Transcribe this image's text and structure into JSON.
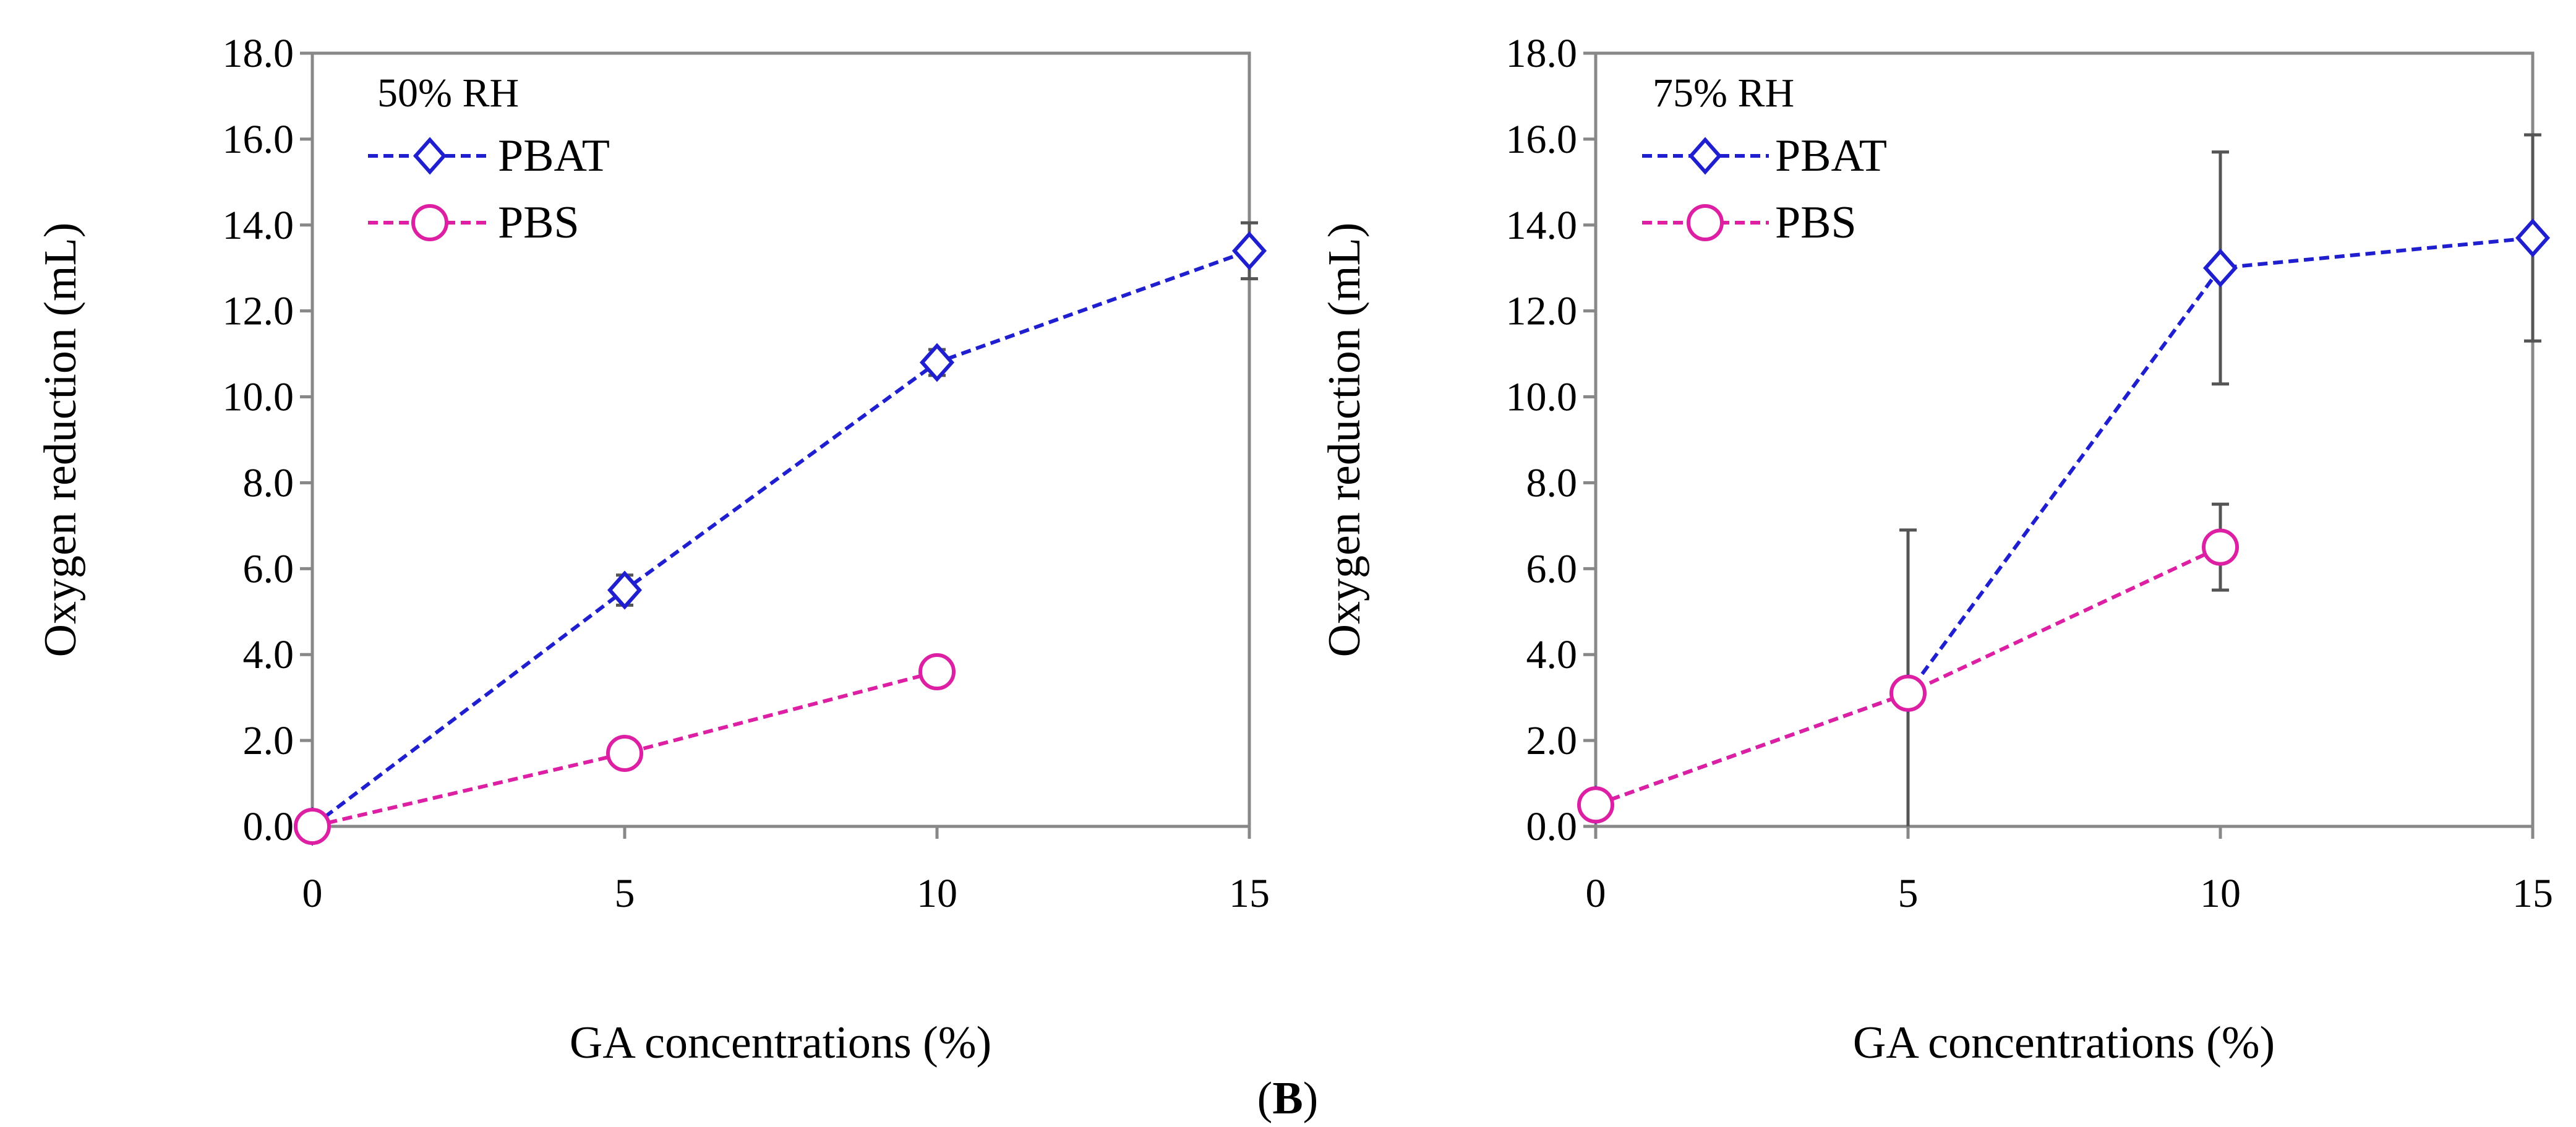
{
  "caption": {
    "open": "(",
    "letter": "B",
    "close": ")"
  },
  "chart_data": [
    {
      "type": "line",
      "panel_label": "50% RH",
      "xlabel": "GA concentrations (%)",
      "ylabel": "Oxygen reduction (mL)",
      "xlim": [
        0,
        15
      ],
      "ylim": [
        0,
        18
      ],
      "x_ticks": [
        "0",
        "5",
        "10",
        "15"
      ],
      "y_ticks": [
        "0.0",
        "2.0",
        "4.0",
        "6.0",
        "8.0",
        "10.0",
        "12.0",
        "14.0",
        "16.0",
        "18.0"
      ],
      "grid": false,
      "legend_position": "top-left",
      "series": [
        {
          "name": "PBAT",
          "color": "#1F1FD0",
          "marker": "diamond",
          "x": [
            0,
            5,
            10,
            15
          ],
          "y": [
            0.0,
            5.5,
            10.8,
            13.4
          ],
          "err": [
            0.0,
            0.35,
            0.3,
            0.65
          ]
        },
        {
          "name": "PBS",
          "color": "#DD1FA3",
          "marker": "circle",
          "x": [
            0,
            5,
            10
          ],
          "y": [
            0.0,
            1.7,
            3.6
          ],
          "err": [
            0.0,
            0.1,
            0.1
          ]
        }
      ]
    },
    {
      "type": "line",
      "panel_label": "75% RH",
      "xlabel": "GA concentrations (%)",
      "ylabel": "Oxygen reduction (mL)",
      "xlim": [
        0,
        15
      ],
      "ylim": [
        0,
        18
      ],
      "x_ticks": [
        "0",
        "5",
        "10",
        "15"
      ],
      "y_ticks": [
        "0.0",
        "2.0",
        "4.0",
        "6.0",
        "8.0",
        "10.0",
        "12.0",
        "14.0",
        "16.0",
        "18.0"
      ],
      "grid": false,
      "legend_position": "top-left",
      "series": [
        {
          "name": "PBAT",
          "color": "#1F1FD0",
          "marker": "diamond",
          "x": [
            0,
            5,
            10,
            15
          ],
          "y": [
            0.5,
            3.1,
            13.0,
            13.7
          ],
          "err": [
            0.0,
            3.8,
            2.7,
            2.4
          ]
        },
        {
          "name": "PBS",
          "color": "#DD1FA3",
          "marker": "circle",
          "x": [
            0,
            5,
            10
          ],
          "y": [
            0.5,
            3.1,
            6.5
          ],
          "err": [
            0.0,
            0.3,
            1.0
          ]
        }
      ]
    }
  ]
}
